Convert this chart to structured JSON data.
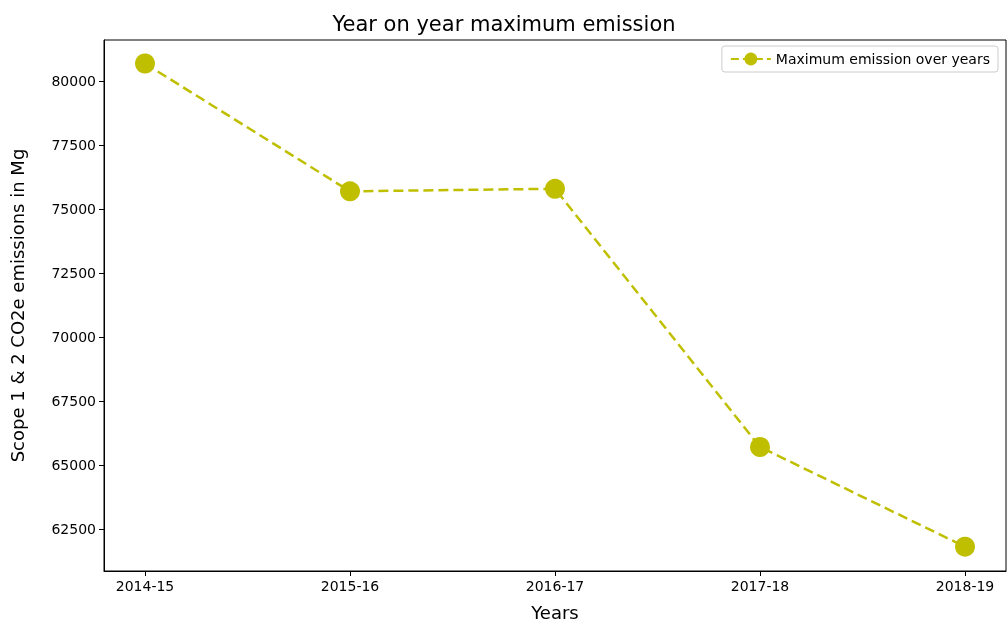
{
  "chart_data": {
    "type": "line",
    "title": "Year on year maximum emission",
    "xlabel": "Years",
    "ylabel": "Scope 1 & 2 CO2e emissions in Mg",
    "categories": [
      "2014-15",
      "2015-16",
      "2016-17",
      "2017-18",
      "2018-19"
    ],
    "series": [
      {
        "name": "Maximum emission over years",
        "color": "#bfbf00",
        "values": [
          80700,
          75700,
          75800,
          65700,
          61800
        ]
      }
    ],
    "ylim": [
      60850,
      81620
    ],
    "yticks": [
      62500,
      65000,
      67500,
      70000,
      72500,
      75000,
      77500,
      80000
    ],
    "grid": false,
    "legend": "top right",
    "marker": "circle",
    "line_style": "dashed"
  }
}
